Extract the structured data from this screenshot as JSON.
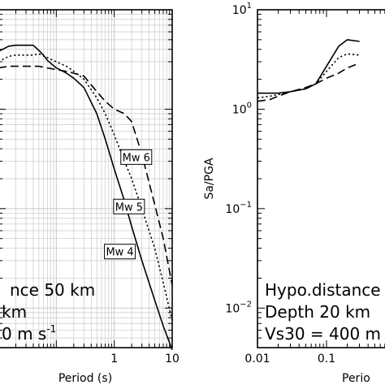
{
  "chart_data": [
    {
      "type": "line",
      "xlabel": "Period (s)",
      "ylabel": "",
      "x_scale": "log",
      "y_scale": "log",
      "xlim": [
        0.01,
        10
      ],
      "ylim": [
        0.004,
        10
      ],
      "x_tick_labels": [
        {
          "value": 1,
          "label": "1"
        },
        {
          "value": 10,
          "label": "10"
        }
      ],
      "y_tick_labels": [],
      "grid": true,
      "series": [
        {
          "name": "Mw 4",
          "dash": "solid",
          "x": [
            0.01,
            0.015,
            0.02,
            0.03,
            0.04,
            0.05,
            0.06,
            0.07,
            0.1,
            0.15,
            0.2,
            0.3,
            0.5,
            0.7,
            1,
            1.5,
            2,
            3,
            5,
            7,
            10
          ],
          "y": [
            3.8,
            4.3,
            4.4,
            4.4,
            4.4,
            3.9,
            3.5,
            3.1,
            2.6,
            2.3,
            2.05,
            1.65,
            0.9,
            0.5,
            0.25,
            0.12,
            0.066,
            0.03,
            0.012,
            0.0066,
            0.0038
          ]
        },
        {
          "name": "Mw 5",
          "dash": "dotted",
          "x": [
            0.01,
            0.015,
            0.02,
            0.03,
            0.04,
            0.05,
            0.07,
            0.1,
            0.15,
            0.2,
            0.3,
            0.5,
            0.7,
            1,
            1.5,
            2,
            3,
            5,
            7,
            10
          ],
          "y": [
            3.0,
            3.4,
            3.5,
            3.5,
            3.5,
            3.6,
            3.3,
            3.0,
            2.7,
            2.4,
            2.0,
            1.3,
            0.9,
            0.55,
            0.3,
            0.2,
            0.1,
            0.04,
            0.018,
            0.0075
          ]
        },
        {
          "name": "Mw 6",
          "dash": "dashed",
          "x": [
            0.01,
            0.015,
            0.02,
            0.03,
            0.05,
            0.07,
            0.1,
            0.15,
            0.2,
            0.3,
            0.5,
            0.7,
            1,
            1.5,
            2,
            3,
            5,
            7,
            10
          ],
          "y": [
            2.6,
            2.7,
            2.7,
            2.7,
            2.7,
            2.6,
            2.5,
            2.4,
            2.3,
            2.15,
            1.5,
            1.2,
            1.0,
            0.9,
            0.75,
            0.35,
            0.11,
            0.05,
            0.017
          ]
        }
      ],
      "annotations": [
        {
          "text": "Mw 6",
          "x": 2.4,
          "y": 0.33
        },
        {
          "text": "Mw 5",
          "x": 1.8,
          "y": 0.105
        },
        {
          "text": "Mw 4",
          "x": 1.25,
          "y": 0.037
        }
      ],
      "info_text": [
        "nce 50 km",
        "km",
        "0 m s",
        "-1"
      ]
    },
    {
      "type": "line",
      "xlabel": "Perio",
      "ylabel": "Sa/PGA",
      "x_scale": "log",
      "y_scale": "log",
      "xlim": [
        0.01,
        1
      ],
      "ylim": [
        0.004,
        10
      ],
      "x_tick_labels": [
        {
          "value": 0.01,
          "label": "0.01"
        },
        {
          "value": 0.1,
          "label": "0.1"
        }
      ],
      "y_tick_labels": [
        {
          "value": 10,
          "base": "10",
          "exp": "1"
        },
        {
          "value": 1,
          "base": "10",
          "exp": "0"
        },
        {
          "value": 0.1,
          "base": "10",
          "exp": "−1"
        },
        {
          "value": 0.01,
          "base": "10",
          "exp": "−2"
        }
      ],
      "grid": false,
      "series": [
        {
          "name": "Mw 4",
          "dash": "solid",
          "x": [
            0.01,
            0.015,
            0.02,
            0.03,
            0.05,
            0.07,
            0.1,
            0.15,
            0.2,
            0.3
          ],
          "y": [
            1.45,
            1.45,
            1.45,
            1.5,
            1.6,
            1.8,
            2.7,
            4.3,
            5.0,
            4.8
          ]
        },
        {
          "name": "Mw 5",
          "dash": "dotted",
          "x": [
            0.01,
            0.015,
            0.02,
            0.03,
            0.05,
            0.07,
            0.1,
            0.15,
            0.2,
            0.3
          ],
          "y": [
            1.3,
            1.35,
            1.4,
            1.5,
            1.6,
            1.8,
            2.4,
            3.3,
            3.6,
            3.5
          ]
        },
        {
          "name": "Mw 6",
          "dash": "dashed",
          "x": [
            0.01,
            0.015,
            0.02,
            0.03,
            0.05,
            0.07,
            0.1,
            0.15,
            0.2,
            0.3
          ],
          "y": [
            1.2,
            1.25,
            1.35,
            1.5,
            1.65,
            1.8,
            2.05,
            2.3,
            2.6,
            2.9
          ]
        }
      ],
      "annotations": [],
      "info_text": [
        "Hypo.distance",
        "Depth 20 km",
        "Vs30 = 400 m"
      ]
    }
  ]
}
